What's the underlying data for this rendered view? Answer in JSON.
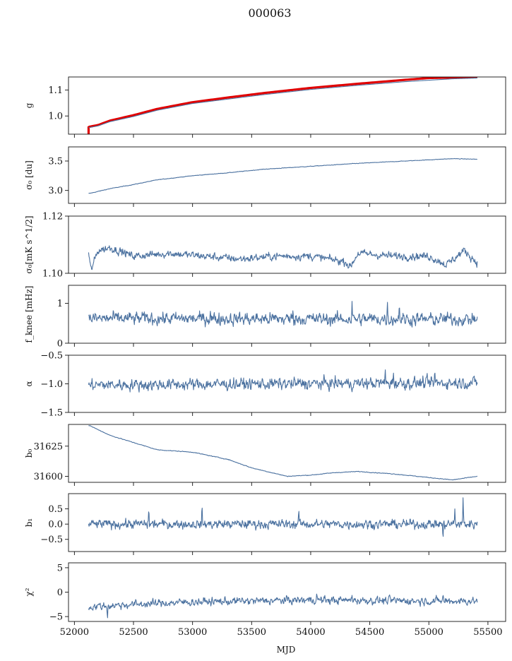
{
  "chart_data": {
    "type": "line",
    "title": "000063",
    "xlabel": "MJD",
    "xlim": [
      51950,
      55650
    ],
    "x_range": [
      52120,
      55410
    ],
    "x_ticks": [
      52000,
      52500,
      53000,
      53500,
      54000,
      54500,
      55000,
      55500
    ],
    "series_color": "#4c72a0",
    "reference_color": "#e00000",
    "panels": [
      {
        "ylabel": "g",
        "ylim": [
          0.93,
          1.15
        ],
        "y_ticks": [
          1.0,
          1.1
        ],
        "y_tick_labels": [
          "1.0",
          "1.1"
        ],
        "series_path": [
          [
            52120,
            0.955
          ],
          [
            52200,
            0.962
          ],
          [
            52300,
            0.978
          ],
          [
            52500,
            0.998
          ],
          [
            52700,
            1.022
          ],
          [
            53000,
            1.048
          ],
          [
            53300,
            1.065
          ],
          [
            53600,
            1.082
          ],
          [
            54000,
            1.102
          ],
          [
            54400,
            1.118
          ],
          [
            54800,
            1.132
          ],
          [
            55200,
            1.143
          ],
          [
            55410,
            1.146
          ]
        ],
        "reference_path": [
          [
            52120,
            0.958
          ],
          [
            52200,
            0.965
          ],
          [
            52300,
            0.982
          ],
          [
            52500,
            1.003
          ],
          [
            52700,
            1.027
          ],
          [
            53000,
            1.053
          ],
          [
            53300,
            1.071
          ],
          [
            53600,
            1.088
          ],
          [
            54000,
            1.108
          ],
          [
            54400,
            1.124
          ],
          [
            54800,
            1.139
          ],
          [
            55000,
            1.146
          ],
          [
            55410,
            1.15
          ]
        ],
        "reference_start": [
          52120,
          0.93,
          0.96
        ]
      },
      {
        "ylabel": "σ₀ [du]",
        "ylim": [
          2.78,
          3.74
        ],
        "y_ticks": [
          3.0,
          3.5
        ],
        "y_tick_labels": [
          "3.0",
          "3.5"
        ],
        "series_path": [
          [
            52130,
            2.95
          ],
          [
            52300,
            3.03
          ],
          [
            52500,
            3.1
          ],
          [
            52700,
            3.18
          ],
          [
            53000,
            3.25
          ],
          [
            53300,
            3.3
          ],
          [
            53600,
            3.36
          ],
          [
            54000,
            3.41
          ],
          [
            54400,
            3.46
          ],
          [
            54800,
            3.5
          ],
          [
            55200,
            3.54
          ],
          [
            55410,
            3.53
          ]
        ]
      },
      {
        "ylabel": "σ₀[mK s^1/2]",
        "ylim": [
          1.1,
          1.12
        ],
        "y_ticks": [
          1.1,
          1.12
        ],
        "y_tick_labels": [
          "1.10",
          "1.12"
        ],
        "series_path": [
          [
            52120,
            1.107
          ],
          [
            52140,
            1.101
          ],
          [
            52200,
            1.108
          ],
          [
            52300,
            1.109
          ],
          [
            52500,
            1.106
          ],
          [
            52800,
            1.107
          ],
          [
            53100,
            1.106
          ],
          [
            53400,
            1.105
          ],
          [
            53700,
            1.106
          ],
          [
            54000,
            1.106
          ],
          [
            54300,
            1.104
          ],
          [
            54330,
            1.102
          ],
          [
            54400,
            1.107
          ],
          [
            54700,
            1.106
          ],
          [
            55000,
            1.106
          ],
          [
            55150,
            1.103
          ],
          [
            55300,
            1.108
          ],
          [
            55400,
            1.104
          ]
        ]
      },
      {
        "ylabel": "f_knee [mHz]",
        "ylim": [
          0,
          1.45
        ],
        "y_ticks": [
          0,
          1
        ],
        "y_tick_labels": [
          "0",
          "1"
        ],
        "series_path": [
          [
            52120,
            0.62
          ],
          [
            55410,
            0.6
          ]
        ]
      },
      {
        "ylabel": "α",
        "ylim": [
          -1.5,
          -0.5
        ],
        "y_ticks": [
          -1.5,
          -1.0,
          -0.5
        ],
        "y_tick_labels": [
          "−1.5",
          "−1.0",
          "−0.5"
        ],
        "series_path": [
          [
            52120,
            -1.02
          ],
          [
            55410,
            -0.98
          ]
        ]
      },
      {
        "ylabel": "b₀",
        "ylim": [
          31595,
          31643
        ],
        "y_ticks": [
          31600,
          31625
        ],
        "y_tick_labels": [
          "31600",
          "31625"
        ],
        "series_path": [
          [
            52130,
            31642
          ],
          [
            52300,
            31634
          ],
          [
            52500,
            31628
          ],
          [
            52700,
            31622
          ],
          [
            53000,
            31620
          ],
          [
            53300,
            31614
          ],
          [
            53500,
            31607
          ],
          [
            53800,
            31600
          ],
          [
            54000,
            31601
          ],
          [
            54200,
            31603
          ],
          [
            54400,
            31604
          ],
          [
            54700,
            31602
          ],
          [
            55000,
            31599
          ],
          [
            55200,
            31597
          ],
          [
            55410,
            31600
          ]
        ]
      },
      {
        "ylabel": "b₁",
        "ylim": [
          -0.9,
          1.0
        ],
        "y_ticks": [
          -0.5,
          0.0,
          0.5
        ],
        "y_tick_labels": [
          "−0.5",
          "0.0",
          "0.5"
        ],
        "series_path": [
          [
            52120,
            0.0
          ],
          [
            55410,
            0.0
          ]
        ]
      },
      {
        "ylabel": "χ²",
        "ylim": [
          -6,
          6
        ],
        "y_ticks": [
          -5,
          0,
          5
        ],
        "y_tick_labels": [
          "−5",
          "0",
          "5"
        ],
        "series_path": [
          [
            52120,
            -3
          ],
          [
            52500,
            -2.5
          ],
          [
            53000,
            -2
          ],
          [
            53500,
            -1.8
          ],
          [
            54000,
            -1.6
          ],
          [
            54500,
            -1.7
          ],
          [
            55000,
            -1.8
          ],
          [
            55410,
            -1.8
          ]
        ]
      }
    ]
  }
}
